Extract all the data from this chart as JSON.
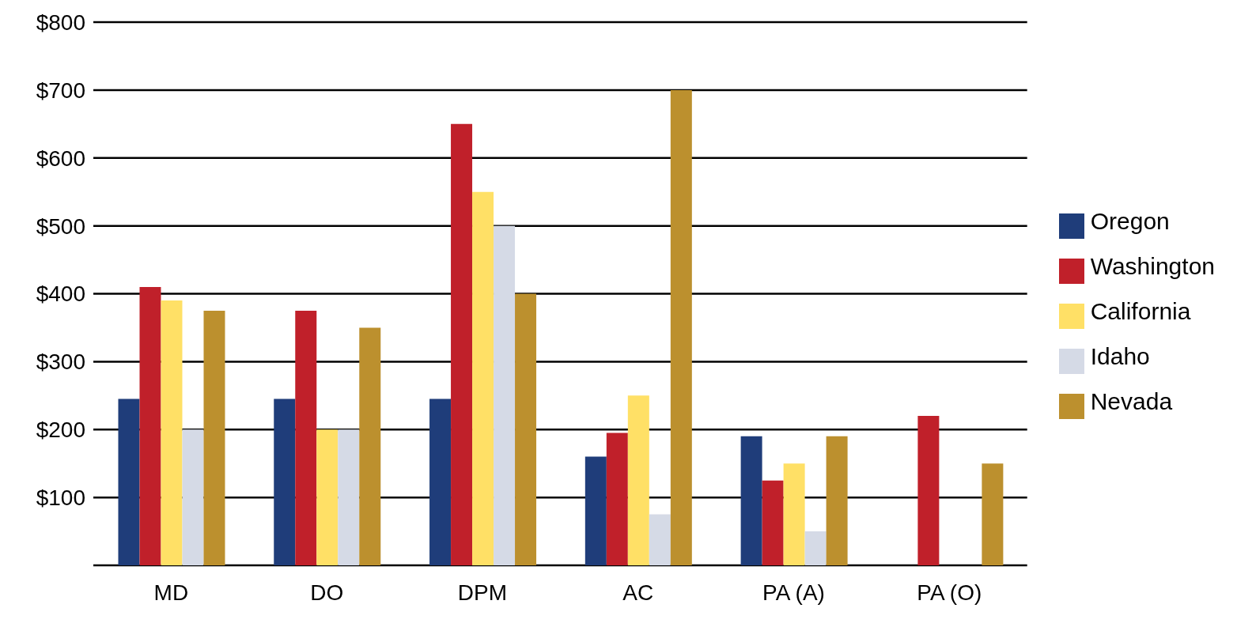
{
  "chart_data": {
    "type": "bar",
    "categories": [
      "MD",
      "DO",
      "DPM",
      "AC",
      "PA (A)",
      "PA (O)"
    ],
    "series": [
      {
        "name": "Oregon",
        "color": "#1f3d7a",
        "values": [
          245,
          245,
          245,
          160,
          190,
          null
        ]
      },
      {
        "name": "Washington",
        "color": "#c0202a",
        "values": [
          410,
          375,
          650,
          195,
          125,
          220
        ]
      },
      {
        "name": "California",
        "color": "#ffe066",
        "values": [
          390,
          200,
          550,
          250,
          150,
          null
        ]
      },
      {
        "name": "Idaho",
        "color": "#d5dae6",
        "values": [
          200,
          200,
          500,
          75,
          50,
          null
        ]
      },
      {
        "name": "Nevada",
        "color": "#bc902e",
        "values": [
          375,
          350,
          400,
          700,
          190,
          150
        ]
      }
    ],
    "ylim": [
      0,
      800
    ],
    "yticks": [
      {
        "value": 0,
        "label": null
      },
      {
        "value": 100,
        "label": "$100"
      },
      {
        "value": 200,
        "label": "$200"
      },
      {
        "value": 300,
        "label": "$300"
      },
      {
        "value": 400,
        "label": "$400"
      },
      {
        "value": 500,
        "label": "$500"
      },
      {
        "value": 600,
        "label": "$600"
      },
      {
        "value": 700,
        "label": "$700"
      },
      {
        "value": 800,
        "label": "$800"
      }
    ],
    "grid": "y",
    "legend": "right"
  }
}
